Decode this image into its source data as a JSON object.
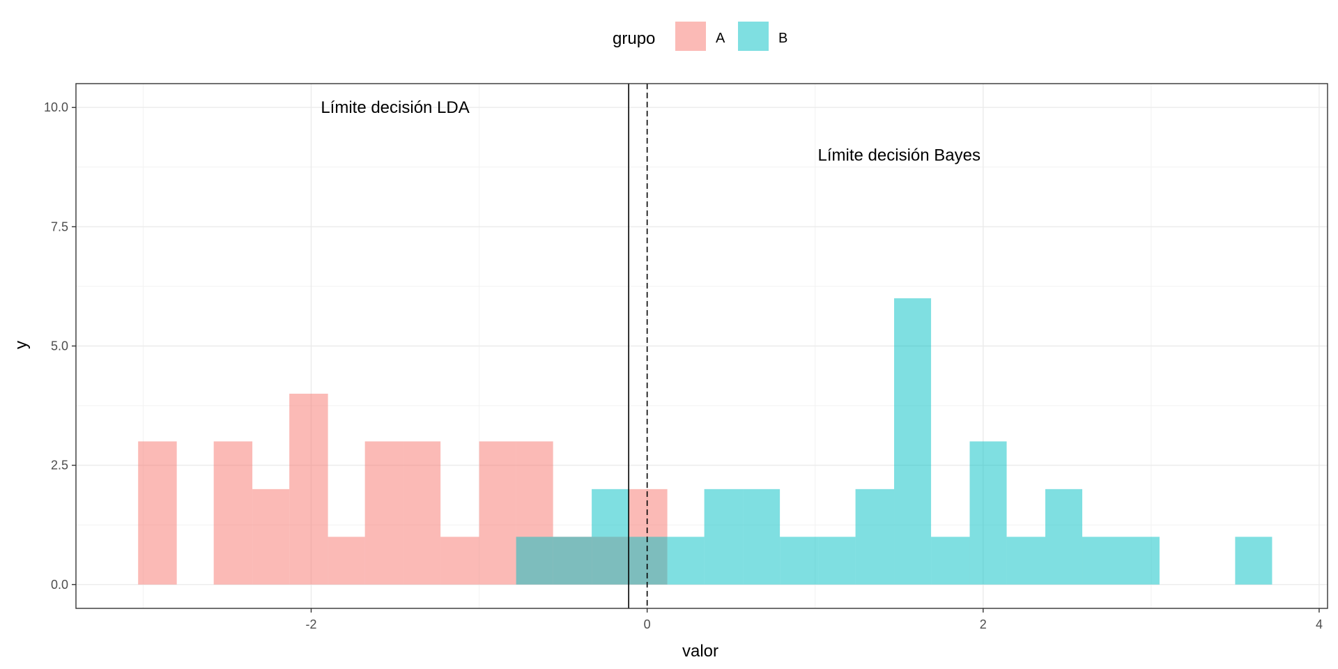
{
  "chart_data": {
    "type": "histogram",
    "xlabel": "valor",
    "ylabel": "y",
    "xlim": [
      -3.4,
      4.05
    ],
    "ylim": [
      -0.5,
      10.5
    ],
    "x_ticks": [
      -2,
      0,
      2,
      4
    ],
    "y_ticks": [
      0.0,
      2.5,
      5.0,
      7.5,
      10.0
    ],
    "x_tick_labels": [
      "-2",
      "0",
      "2",
      "4"
    ],
    "y_tick_labels": [
      "0.0",
      "2.5",
      "5.0",
      "7.5",
      "10.0"
    ],
    "grid": true,
    "legend": {
      "title": "grupo",
      "position": "top",
      "entries": [
        {
          "label": "A",
          "color": "#F8766D"
        },
        {
          "label": "B",
          "color": "#00BFC4"
        }
      ]
    },
    "bin_width": 0.225,
    "series": [
      {
        "name": "A",
        "color": "#F8766D",
        "bins": [
          {
            "x0": -3.03,
            "x1": -2.8,
            "count": 3
          },
          {
            "x0": -2.58,
            "x1": -2.35,
            "count": 3
          },
          {
            "x0": -2.35,
            "x1": -2.13,
            "count": 2
          },
          {
            "x0": -2.13,
            "x1": -1.9,
            "count": 4
          },
          {
            "x0": -1.9,
            "x1": -1.68,
            "count": 1
          },
          {
            "x0": -1.68,
            "x1": -1.45,
            "count": 3
          },
          {
            "x0": -1.45,
            "x1": -1.23,
            "count": 3
          },
          {
            "x0": -1.23,
            "x1": -1.0,
            "count": 1
          },
          {
            "x0": -1.0,
            "x1": -0.78,
            "count": 3
          },
          {
            "x0": -0.78,
            "x1": -0.56,
            "count": 3
          },
          {
            "x0": -0.56,
            "x1": -0.33,
            "count": 1
          },
          {
            "x0": -0.33,
            "x1": -0.11,
            "count": 1
          },
          {
            "x0": -0.11,
            "x1": 0.12,
            "count": 2
          }
        ]
      },
      {
        "name": "B",
        "color": "#00BFC4",
        "bins": [
          {
            "x0": -0.78,
            "x1": -0.56,
            "count": 1
          },
          {
            "x0": -0.56,
            "x1": -0.33,
            "count": 1
          },
          {
            "x0": -0.33,
            "x1": -0.11,
            "count": 2
          },
          {
            "x0": -0.11,
            "x1": 0.12,
            "count": 1
          },
          {
            "x0": 0.12,
            "x1": 0.34,
            "count": 1
          },
          {
            "x0": 0.34,
            "x1": 0.57,
            "count": 2
          },
          {
            "x0": 0.57,
            "x1": 0.79,
            "count": 2
          },
          {
            "x0": 0.79,
            "x1": 1.02,
            "count": 1
          },
          {
            "x0": 1.02,
            "x1": 1.24,
            "count": 1
          },
          {
            "x0": 1.24,
            "x1": 1.47,
            "count": 2
          },
          {
            "x0": 1.47,
            "x1": 1.69,
            "count": 6
          },
          {
            "x0": 1.69,
            "x1": 1.92,
            "count": 1
          },
          {
            "x0": 1.92,
            "x1": 2.14,
            "count": 3
          },
          {
            "x0": 2.14,
            "x1": 2.37,
            "count": 1
          },
          {
            "x0": 2.37,
            "x1": 2.59,
            "count": 2
          },
          {
            "x0": 2.59,
            "x1": 2.82,
            "count": 1
          },
          {
            "x0": 2.82,
            "x1": 3.05,
            "count": 1
          },
          {
            "x0": 3.5,
            "x1": 3.72,
            "count": 1
          }
        ]
      }
    ],
    "vlines": [
      {
        "x": -0.11,
        "style": "solid",
        "label": "Límite decisión LDA",
        "label_x": -1.5,
        "label_y": 10.0
      },
      {
        "x": 0.0,
        "style": "dashed",
        "label": "Límite decisión Bayes",
        "label_x": 1.5,
        "label_y": 9.0
      }
    ]
  }
}
